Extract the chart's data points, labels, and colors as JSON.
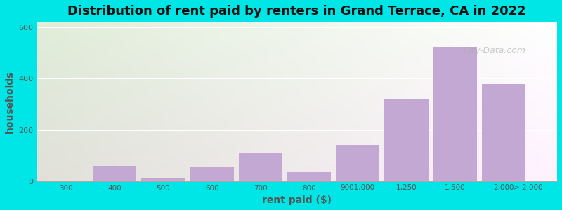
{
  "title": "Distribution of rent paid by renters in Grand Terrace, CA in 2022",
  "xlabel": "rent paid ($)",
  "ylabel": "households",
  "categories": [
    "300",
    "400",
    "500",
    "600",
    "700",
    "800",
    "9001,000",
    "1,250",
    "1,500",
    "2,000",
    "> 2,000"
  ],
  "values": [
    2,
    60,
    12,
    55,
    110,
    38,
    140,
    320,
    525,
    378
  ],
  "bar_colors": [
    "#c8d8b0",
    "#c8b0d8",
    "#c8d8b0",
    "#c8b0d8",
    "#c8b0d8",
    "#c8b0d8",
    "#c8b0d8",
    "#c8b0d8",
    "#c8b0d8",
    "#c8b0d8"
  ],
  "ylim": [
    0,
    620
  ],
  "yticks": [
    0,
    200,
    400,
    600
  ],
  "background_color": "#00e5e5",
  "plot_bg_start": "#e8f0d0",
  "plot_bg_end": "#ffffff",
  "bar_color_main": "#c4a8d4",
  "bar_color_first": "#c8d8b0",
  "title_fontsize": 13,
  "axis_label_fontsize": 10,
  "watermark": "City-Data.com"
}
